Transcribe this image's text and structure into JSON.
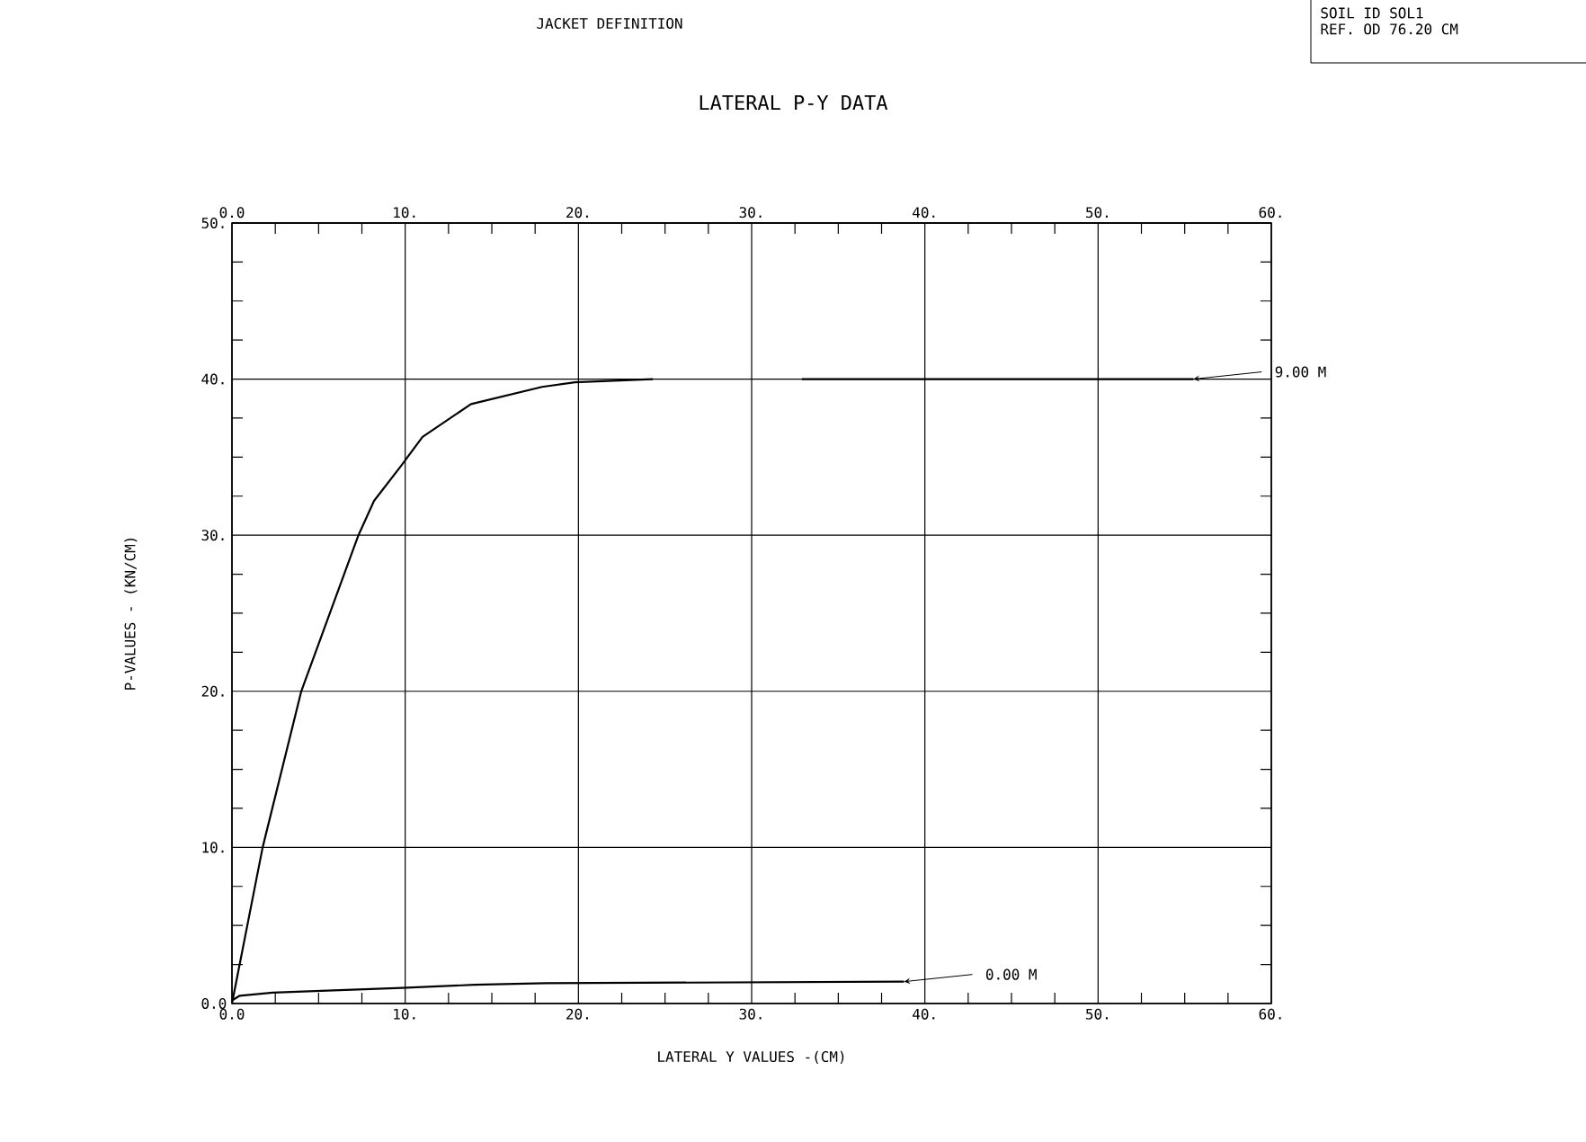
{
  "chart_data": {
    "type": "line",
    "title": "LATERAL P-Y DATA",
    "subtitle": "JACKET DEFINITION",
    "xlabel": "LATERAL Y VALUES -(CM)",
    "ylabel": "P-VALUES  -  (KN/CM)",
    "annotations": [
      "SOIL ID SOL1",
      "REF. OD  76.20 CM"
    ],
    "series": [
      {
        "name": "9.00 M",
        "color": "#000000",
        "x": [
          0,
          1.77,
          4.0,
          7.3,
          8.2,
          9.8,
          11.0,
          13.8,
          17.9,
          19.8,
          24.3,
          28,
          32.9,
          55.5
        ],
        "values": [
          0,
          10,
          20,
          30,
          32.2,
          34.5,
          36.3,
          38.4,
          39.5,
          39.8,
          40,
          null,
          40,
          40
        ]
      },
      {
        "name": "0.00 M",
        "color": "#000000",
        "x": [
          0,
          0.45,
          2.35,
          4.8,
          9.8,
          14,
          18.1,
          38.8
        ],
        "values": [
          0.2,
          0.5,
          0.7,
          0.8,
          1.0,
          1.2,
          1.3,
          1.4
        ]
      }
    ],
    "xlim": [
      0,
      60
    ],
    "ylim": [
      0,
      50
    ],
    "x2lim": [
      0,
      60
    ],
    "xticks": [
      {
        "value": 0,
        "label": "0.0"
      },
      {
        "value": 10,
        "label": "10."
      },
      {
        "value": 20,
        "label": "20."
      },
      {
        "value": 30,
        "label": "30."
      },
      {
        "value": 40,
        "label": "40."
      },
      {
        "value": 50,
        "label": "50."
      },
      {
        "value": 60,
        "label": "60."
      }
    ],
    "x2ticks": [
      {
        "value": 0,
        "label": "0.0"
      },
      {
        "value": 10,
        "label": "10."
      },
      {
        "value": 20,
        "label": "20."
      },
      {
        "value": 30,
        "label": "30."
      },
      {
        "value": 40,
        "label": "40."
      },
      {
        "value": 50,
        "label": "50."
      },
      {
        "value": 60,
        "label": "60."
      }
    ],
    "yticks": [
      {
        "value": 0,
        "label": "0.0"
      },
      {
        "value": 10,
        "label": "10."
      },
      {
        "value": 20,
        "label": "20."
      },
      {
        "value": 30,
        "label": "30."
      },
      {
        "value": 40,
        "label": "40."
      },
      {
        "value": 50,
        "label": "50."
      }
    ],
    "grid": true,
    "legend": "right",
    "marker": "none",
    "line_style": "solid"
  }
}
